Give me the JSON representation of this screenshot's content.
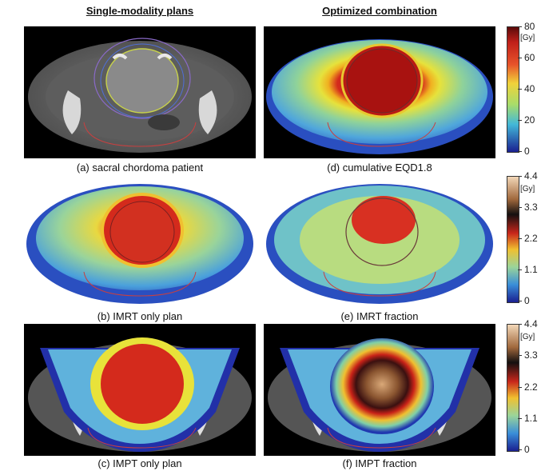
{
  "headers": {
    "left": "Single-modality plans",
    "right": "Optimized combination"
  },
  "captions": {
    "a": "(a) sacral chordoma patient",
    "b": "(b) IMRT only plan",
    "c": "(c) IMPT only plan",
    "d": "(d) cumulative EQD1.8",
    "e": "(e) IMRT fraction",
    "f": "(f) IMPT fraction"
  },
  "colorbars": [
    {
      "unit": "[Gy]",
      "ticks": [
        "80",
        "60",
        "40",
        "20",
        "0"
      ]
    },
    {
      "unit": "[Gy]",
      "ticks": [
        "4.4",
        "3.3",
        "2.2",
        "1.1",
        "0"
      ]
    },
    {
      "unit": "[Gy]",
      "ticks": [
        "4.4",
        "3.3",
        "2.2",
        "1.1",
        "0"
      ]
    }
  ],
  "colors": {
    "dose_high": "#c8261b",
    "dose_mid": "#e9e23a",
    "dose_low": "#1b2fa5",
    "dose_top": "#d9b48c",
    "ct_gray": "#6c6c6c"
  }
}
